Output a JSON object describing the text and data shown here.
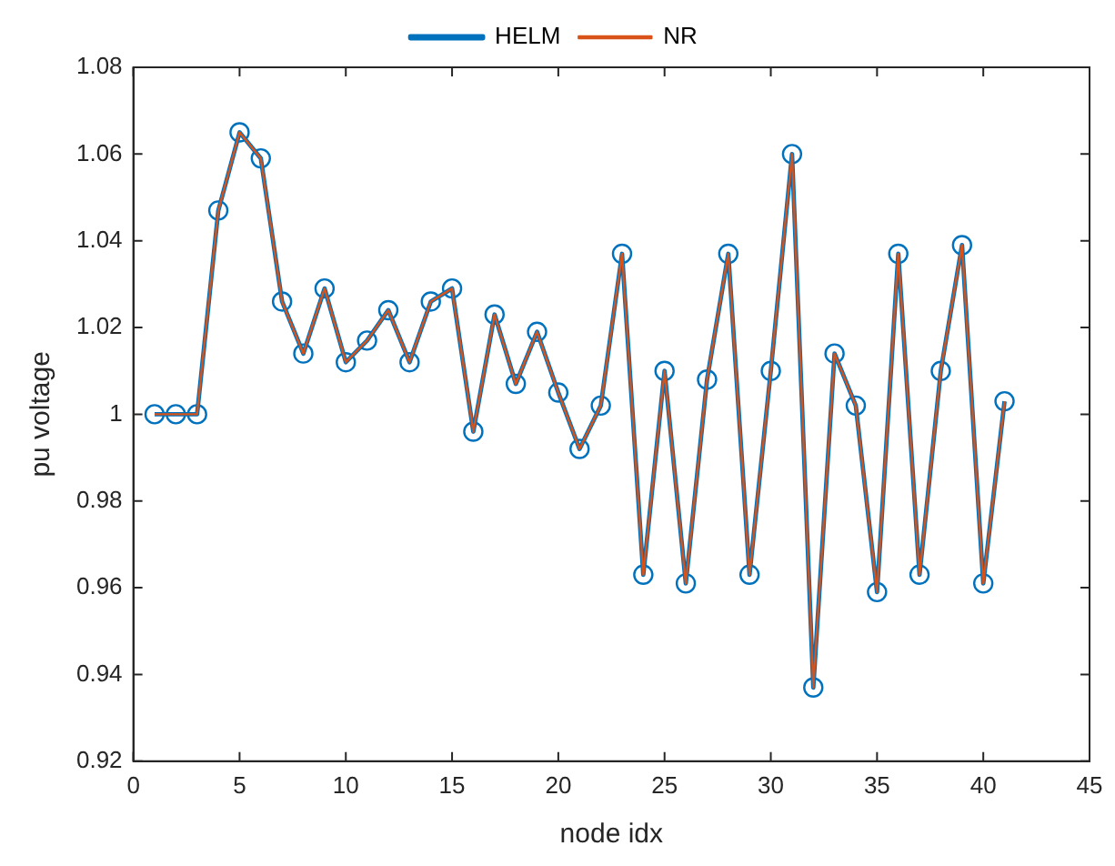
{
  "chart_data": {
    "type": "line",
    "xlabel": "node idx",
    "ylabel": "pu voltage",
    "x": [
      1,
      2,
      3,
      4,
      5,
      6,
      7,
      8,
      9,
      10,
      11,
      12,
      13,
      14,
      15,
      16,
      17,
      18,
      19,
      20,
      21,
      22,
      23,
      24,
      25,
      26,
      27,
      28,
      29,
      30,
      31,
      32,
      33,
      34,
      35,
      36,
      37,
      38,
      39,
      40,
      41
    ],
    "series": [
      {
        "name": "HELM",
        "color": "#0072bd",
        "marker": "circle",
        "values": [
          1.0,
          1.0,
          1.0,
          1.047,
          1.065,
          1.059,
          1.026,
          1.014,
          1.029,
          1.012,
          1.017,
          1.024,
          1.012,
          1.026,
          1.029,
          0.996,
          1.023,
          1.007,
          1.019,
          1.005,
          0.992,
          1.002,
          1.037,
          0.963,
          1.01,
          0.961,
          1.008,
          1.037,
          0.963,
          1.01,
          1.06,
          0.937,
          1.014,
          1.002,
          0.959,
          1.037,
          0.963,
          1.01,
          1.039,
          0.961,
          1.003
        ]
      },
      {
        "name": "NR",
        "color": "#d95319",
        "marker": "none",
        "values": [
          1.0,
          1.0,
          1.0,
          1.047,
          1.065,
          1.059,
          1.026,
          1.014,
          1.029,
          1.012,
          1.017,
          1.024,
          1.012,
          1.026,
          1.029,
          0.996,
          1.023,
          1.007,
          1.019,
          1.005,
          0.992,
          1.002,
          1.037,
          0.963,
          1.01,
          0.961,
          1.008,
          1.037,
          0.963,
          1.01,
          1.06,
          0.937,
          1.014,
          1.002,
          0.959,
          1.037,
          0.963,
          1.01,
          1.039,
          0.961,
          1.003
        ]
      }
    ],
    "xlim": [
      0,
      45
    ],
    "xticks": [
      0,
      5,
      10,
      15,
      20,
      25,
      30,
      35,
      40,
      45
    ],
    "ylim": [
      0.92,
      1.08
    ],
    "yticks": [
      0.92,
      0.94,
      0.96,
      0.98,
      1,
      1.02,
      1.04,
      1.06,
      1.08
    ],
    "grid": false,
    "legend": "top",
    "line_style": "solid"
  }
}
